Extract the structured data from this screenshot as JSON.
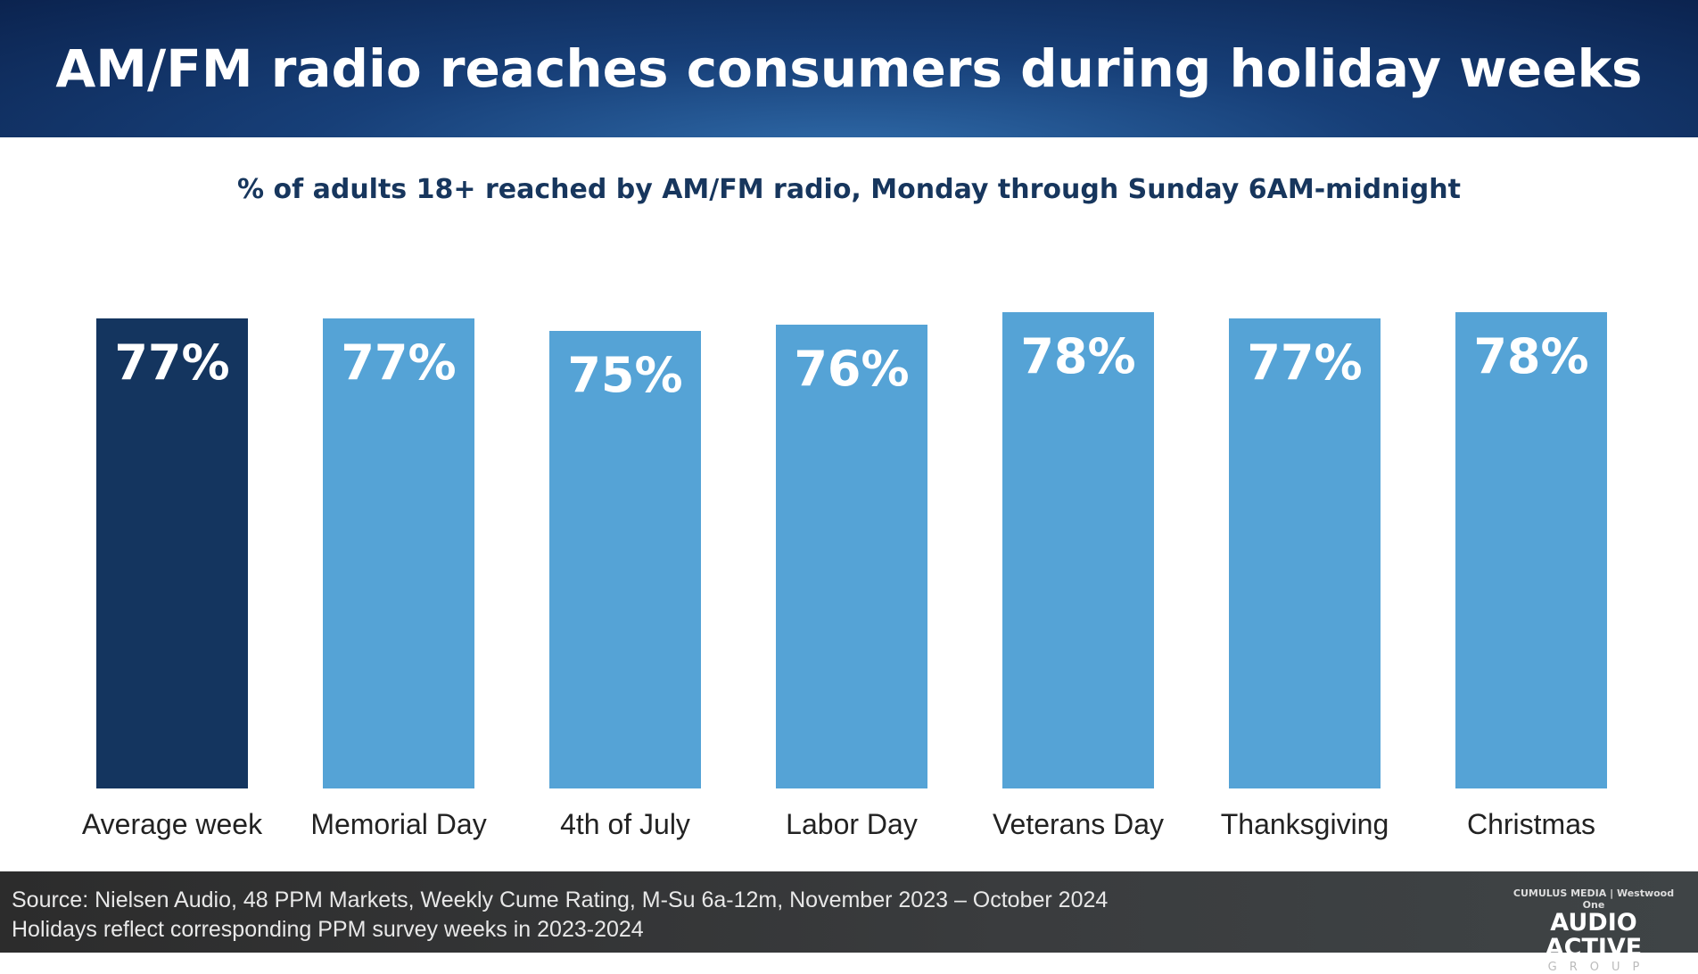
{
  "chart_data": {
    "type": "bar",
    "title": "AM/FM radio reaches consumers during holiday weeks",
    "subtitle": "% of adults 18+ reached by AM/FM radio, Monday through Sunday 6AM-midnight",
    "categories": [
      "Average week",
      "Memorial Day",
      "4th of July",
      "Labor Day",
      "Veterans Day",
      "Thanksgiving",
      "Christmas"
    ],
    "values": [
      77,
      77,
      75,
      76,
      78,
      77,
      78
    ],
    "value_labels": [
      "77%",
      "77%",
      "75%",
      "76%",
      "78%",
      "77%",
      "78%"
    ],
    "ylim": [
      0,
      100
    ],
    "grid": false,
    "colors": {
      "highlight": "#14355f",
      "default": "#55a3d6"
    }
  },
  "footer": {
    "source_line1": "Source: Nielsen Audio, 48 PPM Markets, Weekly Cume Rating, M-Su 6a-12m, November 2023 – October 2024",
    "source_line2": "Holidays reflect corresponding PPM survey weeks in 2023-2024",
    "logo": {
      "top": "CUMULUS MEDIA | Westwood One",
      "main": "AUDIO ACTIVE",
      "sub": "GROUP"
    }
  }
}
